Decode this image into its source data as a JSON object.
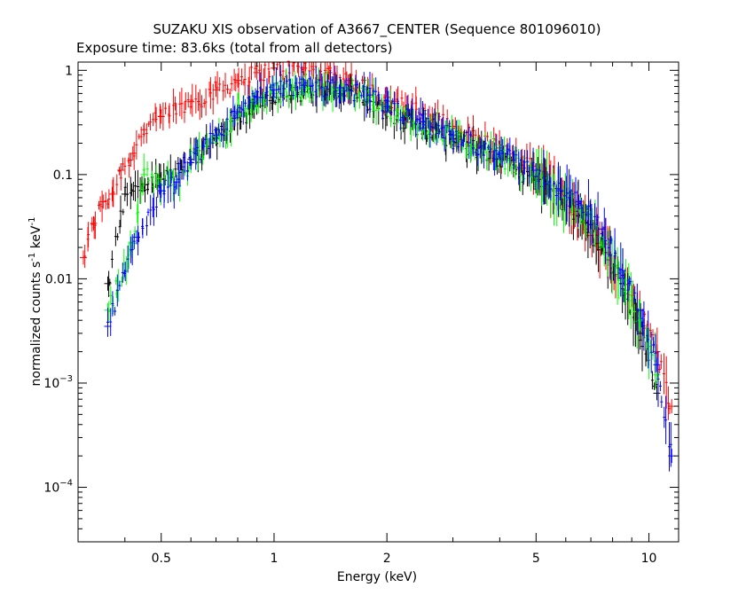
{
  "chart_data": {
    "type": "scatter",
    "title": "SUZAKU XIS observation of A3667_CENTER (Sequence 801096010)",
    "subtitle": "Exposure time: 83.6ks (total from all detectors)",
    "xlabel": "Energy (keV)",
    "ylabel_parts": [
      "normalized counts s",
      "-1",
      " keV",
      "-1"
    ],
    "x_scale": "log",
    "y_scale": "log",
    "xlim": [
      0.3,
      12
    ],
    "ylim": [
      3e-05,
      1.2
    ],
    "grid": false,
    "legend": "none",
    "x_ticks": [
      {
        "value": 0.5,
        "label": "0.5"
      },
      {
        "value": 1,
        "label": "1"
      },
      {
        "value": 2,
        "label": "2"
      },
      {
        "value": 5,
        "label": "5"
      },
      {
        "value": 10,
        "label": "10"
      }
    ],
    "y_ticks": [
      {
        "value": 1,
        "base": "1",
        "exp": ""
      },
      {
        "value": 0.1,
        "base": "0.1",
        "exp": ""
      },
      {
        "value": 0.01,
        "base": "0.01",
        "exp": ""
      },
      {
        "value": 0.001,
        "base": "10",
        "exp": "−3"
      },
      {
        "value": 0.0001,
        "base": "10",
        "exp": "−4"
      }
    ],
    "series": [
      {
        "color": "#ff0000",
        "points": [
          [
            0.31,
            0.016
          ],
          [
            0.33,
            0.034
          ],
          [
            0.35,
            0.055
          ],
          [
            0.37,
            0.065
          ],
          [
            0.39,
            0.11
          ],
          [
            0.42,
            0.16
          ],
          [
            0.45,
            0.27
          ],
          [
            0.5,
            0.36
          ],
          [
            0.6,
            0.5
          ],
          [
            0.7,
            0.65
          ],
          [
            0.8,
            0.8
          ],
          [
            0.9,
            0.95
          ],
          [
            1.0,
            1.05
          ],
          [
            1.2,
            1.05
          ],
          [
            1.4,
            0.95
          ],
          [
            1.6,
            0.8
          ],
          [
            2.0,
            0.55
          ],
          [
            2.5,
            0.38
          ],
          [
            3.0,
            0.29
          ],
          [
            4.0,
            0.18
          ],
          [
            5.0,
            0.11
          ],
          [
            5.8,
            0.07
          ],
          [
            6.2,
            0.05
          ],
          [
            6.7,
            0.035
          ],
          [
            7.5,
            0.022
          ],
          [
            8.5,
            0.01
          ],
          [
            9.5,
            0.005
          ],
          [
            10.5,
            0.002
          ],
          [
            11.5,
            0.0006
          ]
        ]
      },
      {
        "color": "#000000",
        "points": [
          [
            0.36,
            0.009
          ],
          [
            0.4,
            0.065
          ],
          [
            0.45,
            0.08
          ],
          [
            0.5,
            0.09
          ],
          [
            0.6,
            0.14
          ],
          [
            0.7,
            0.22
          ],
          [
            0.8,
            0.35
          ],
          [
            0.9,
            0.45
          ],
          [
            1.0,
            0.55
          ],
          [
            1.2,
            0.62
          ],
          [
            1.5,
            0.6
          ],
          [
            1.8,
            0.5
          ],
          [
            2.0,
            0.4
          ],
          [
            2.5,
            0.28
          ],
          [
            3.0,
            0.22
          ],
          [
            4.0,
            0.14
          ],
          [
            5.0,
            0.09
          ],
          [
            5.8,
            0.06
          ],
          [
            6.5,
            0.04
          ],
          [
            7.5,
            0.02
          ],
          [
            8.5,
            0.009
          ],
          [
            9.5,
            0.003
          ],
          [
            10.5,
            0.0008
          ]
        ]
      },
      {
        "color": "#00ff00",
        "points": [
          [
            0.36,
            0.005
          ],
          [
            0.42,
            0.022
          ],
          [
            0.45,
            0.1
          ],
          [
            0.5,
            0.08
          ],
          [
            0.55,
            0.09
          ],
          [
            0.6,
            0.13
          ],
          [
            0.7,
            0.23
          ],
          [
            0.8,
            0.38
          ],
          [
            0.9,
            0.5
          ],
          [
            1.0,
            0.6
          ],
          [
            1.2,
            0.68
          ],
          [
            1.5,
            0.65
          ],
          [
            1.8,
            0.55
          ],
          [
            2.0,
            0.42
          ],
          [
            2.5,
            0.3
          ],
          [
            3.0,
            0.23
          ],
          [
            4.0,
            0.15
          ],
          [
            5.0,
            0.1
          ],
          [
            5.8,
            0.06
          ],
          [
            6.5,
            0.05
          ],
          [
            7.5,
            0.025
          ],
          [
            8.5,
            0.01
          ],
          [
            9.5,
            0.004
          ],
          [
            10.5,
            0.0012
          ]
        ]
      },
      {
        "color": "#0000ff",
        "points": [
          [
            0.36,
            0.0035
          ],
          [
            0.43,
            0.025
          ],
          [
            0.5,
            0.07
          ],
          [
            0.55,
            0.085
          ],
          [
            0.6,
            0.13
          ],
          [
            0.7,
            0.24
          ],
          [
            0.8,
            0.4
          ],
          [
            0.9,
            0.55
          ],
          [
            1.0,
            0.65
          ],
          [
            1.2,
            0.72
          ],
          [
            1.5,
            0.68
          ],
          [
            1.8,
            0.58
          ],
          [
            2.0,
            0.45
          ],
          [
            2.5,
            0.32
          ],
          [
            3.0,
            0.24
          ],
          [
            4.0,
            0.16
          ],
          [
            5.0,
            0.11
          ],
          [
            5.8,
            0.07
          ],
          [
            6.5,
            0.055
          ],
          [
            7.5,
            0.03
          ],
          [
            8.5,
            0.012
          ],
          [
            9.5,
            0.005
          ],
          [
            10.5,
            0.0015
          ],
          [
            11.5,
            0.0002
          ]
        ]
      }
    ]
  }
}
